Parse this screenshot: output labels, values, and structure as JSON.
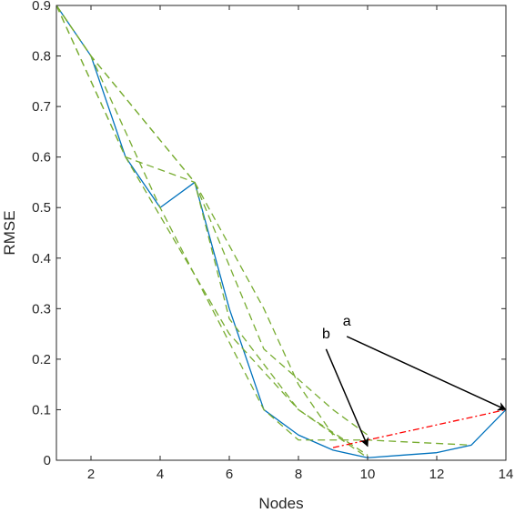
{
  "chart_data": {
    "type": "line",
    "xlabel": "Nodes",
    "ylabel": "RMSE",
    "xlim": [
      1,
      14
    ],
    "ylim": [
      0,
      0.9
    ],
    "xticks": [
      2,
      4,
      6,
      8,
      10,
      12,
      14
    ],
    "yticks": [
      0,
      0.1,
      0.2,
      0.3,
      0.4,
      0.5,
      0.6,
      0.7,
      0.8,
      0.9
    ],
    "grid": false,
    "series": [
      {
        "style": "solid",
        "color": "#0072BD",
        "x": [
          1,
          2,
          3,
          4,
          5,
          6,
          7,
          8,
          9,
          10,
          11,
          12,
          13,
          14
        ],
        "y": [
          0.9,
          0.8,
          0.6,
          0.5,
          0.55,
          0.3,
          0.1,
          0.05,
          0.02,
          0.005,
          0.01,
          0.015,
          0.03,
          0.1
        ]
      },
      {
        "style": "dashed",
        "color": "#77AC30",
        "x": [
          1,
          2,
          5,
          7,
          8,
          9
        ],
        "y": [
          0.9,
          0.8,
          0.55,
          0.3,
          0.15,
          0.05
        ]
      },
      {
        "style": "dashed",
        "color": "#77AC30",
        "x": [
          1,
          3,
          5,
          6,
          8,
          10
        ],
        "y": [
          0.9,
          0.6,
          0.55,
          0.28,
          0.1,
          0.005
        ]
      },
      {
        "style": "dashed",
        "color": "#77AC30",
        "x": [
          1,
          2,
          4,
          7,
          8,
          10,
          13
        ],
        "y": [
          0.9,
          0.8,
          0.5,
          0.1,
          0.04,
          0.04,
          0.03
        ]
      },
      {
        "style": "dashed",
        "color": "#77AC30",
        "x": [
          1,
          3,
          6,
          8,
          10
        ],
        "y": [
          0.9,
          0.6,
          0.25,
          0.1,
          0.01
        ]
      },
      {
        "style": "dashed",
        "color": "#77AC30",
        "x": [
          1,
          2,
          5,
          7,
          9,
          10
        ],
        "y": [
          0.9,
          0.8,
          0.55,
          0.22,
          0.1,
          0.05
        ]
      },
      {
        "style": "dashdot",
        "color": "#FF0000",
        "x": [
          9,
          14
        ],
        "y": [
          0.025,
          0.1
        ]
      }
    ],
    "annotations": [
      {
        "text": "a",
        "text_x": 9.4,
        "text_y": 0.245,
        "head_x": 14,
        "head_y": 0.1
      },
      {
        "text": "b",
        "text_x": 8.8,
        "text_y": 0.22,
        "head_x": 10,
        "head_y": 0.028
      }
    ]
  }
}
